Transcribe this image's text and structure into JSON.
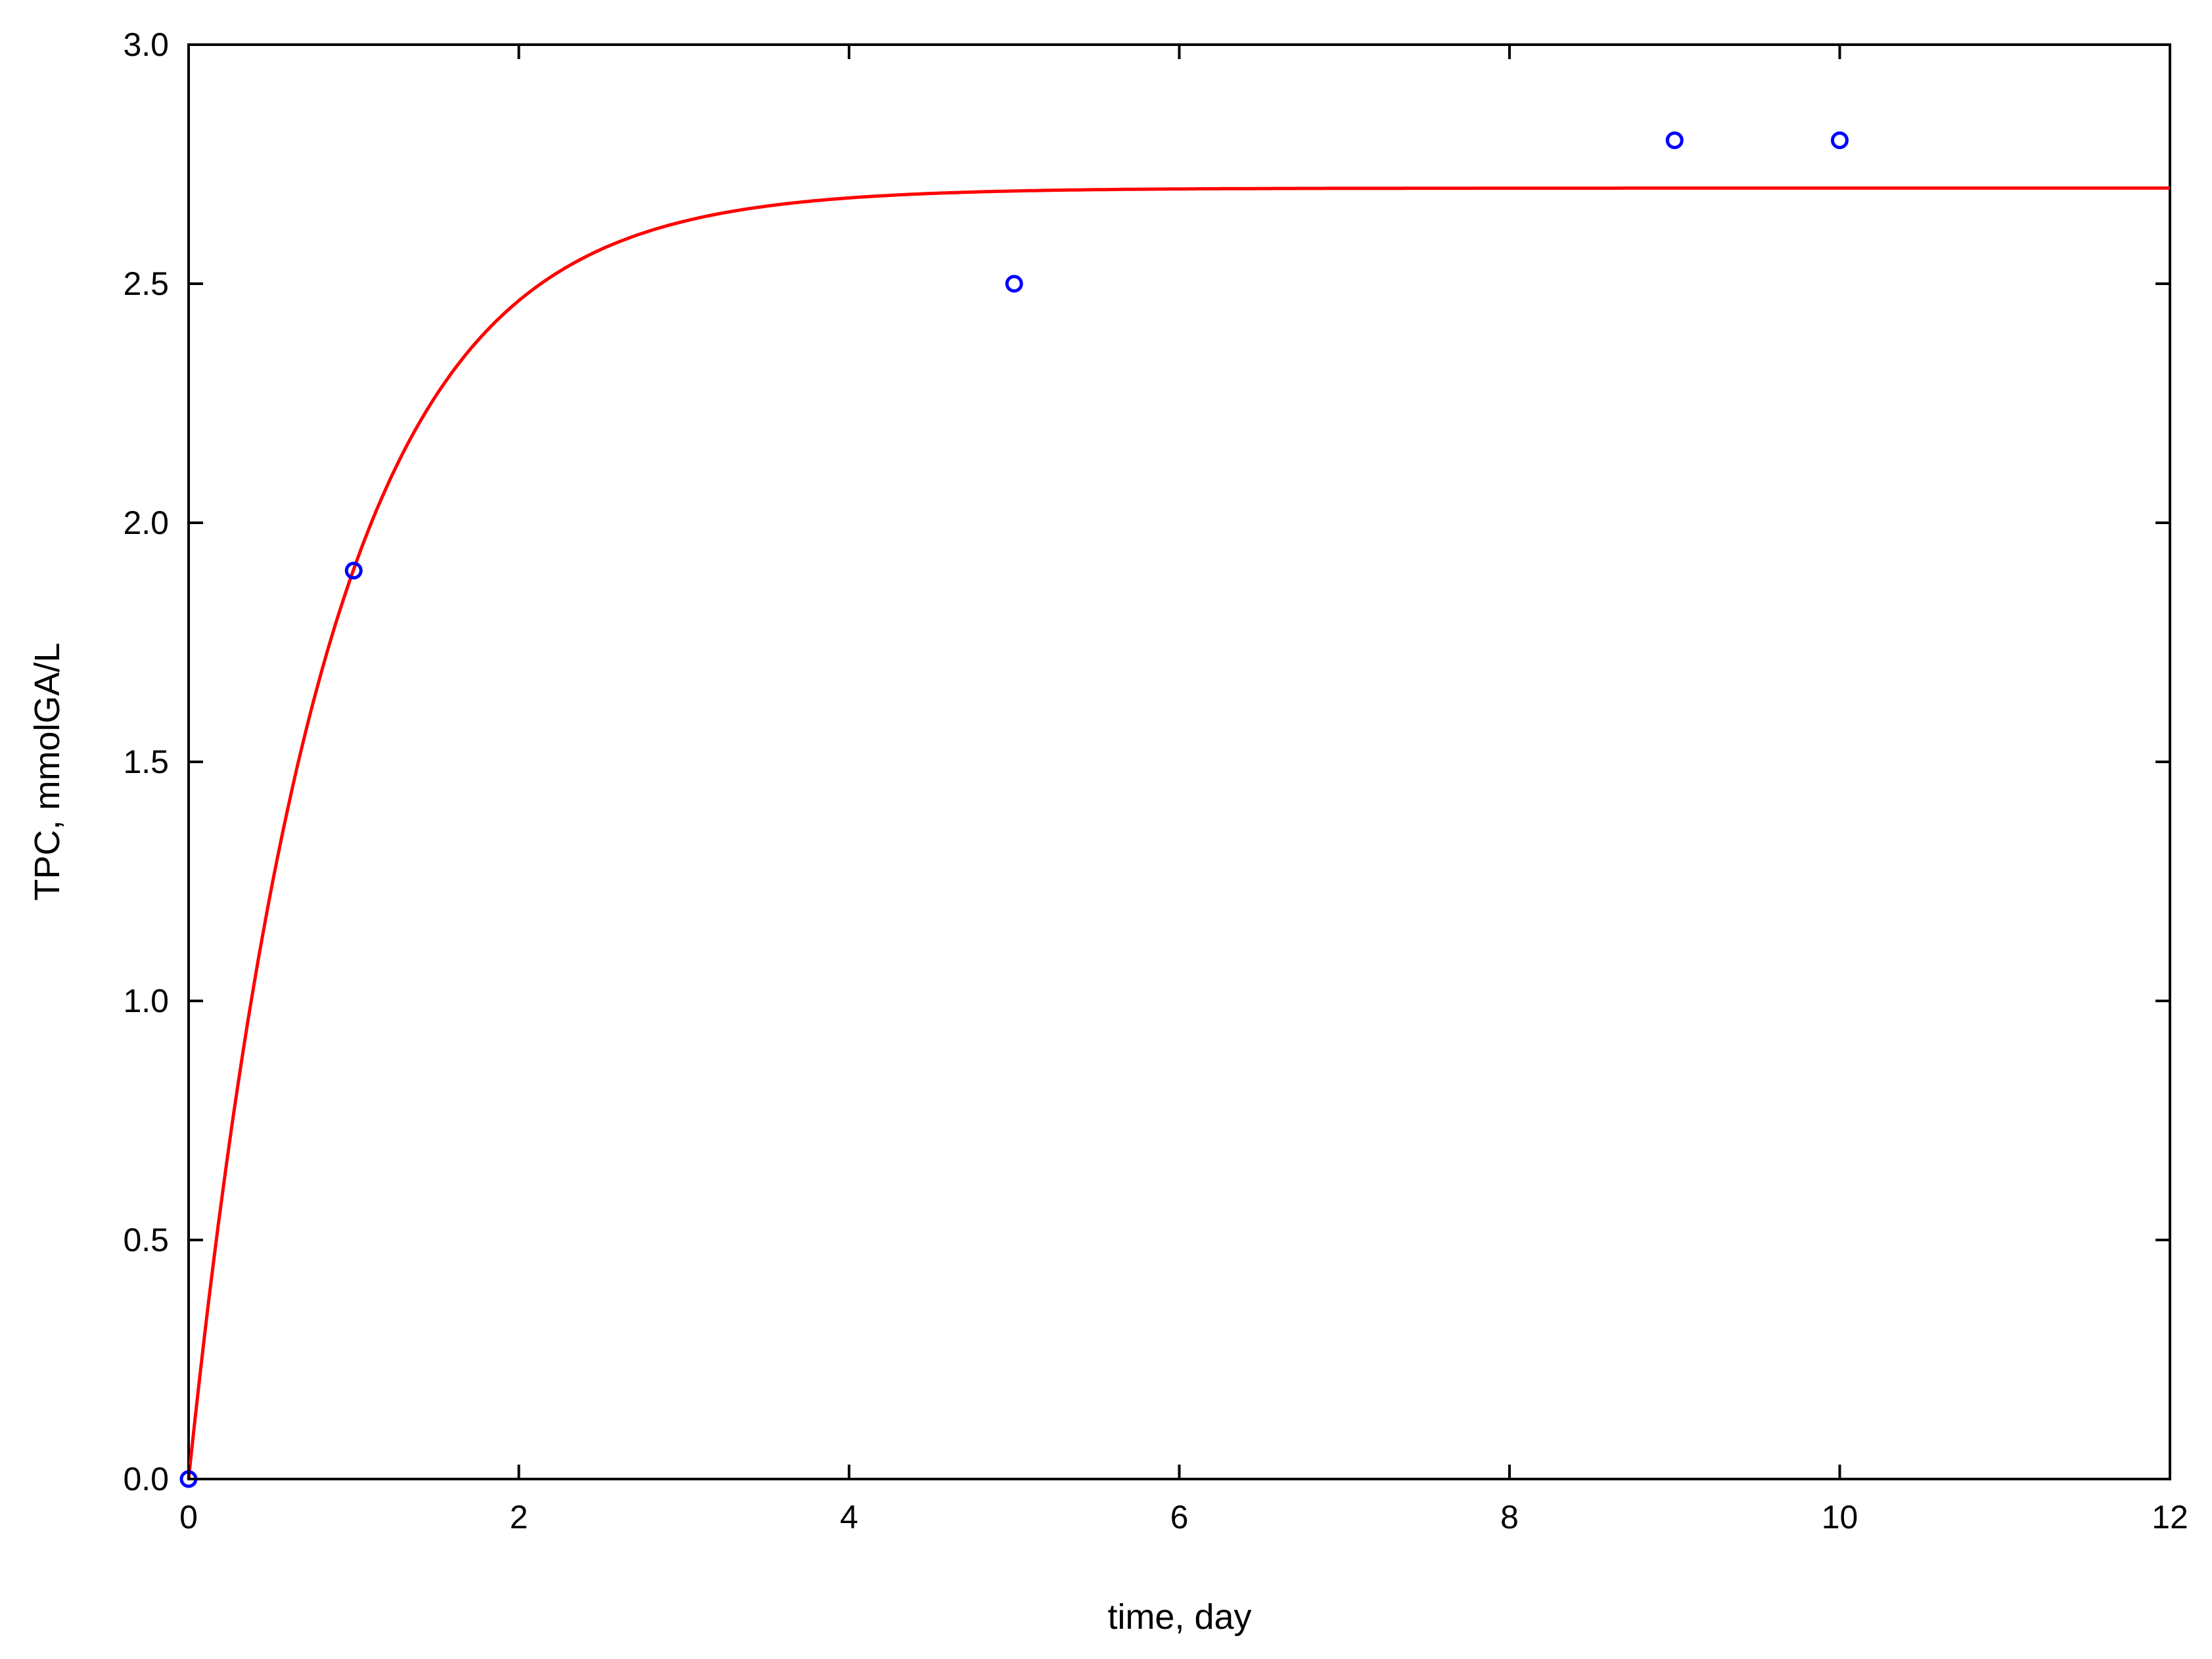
{
  "chart_data": {
    "type": "scatter",
    "title": "",
    "xlabel": "time, day",
    "ylabel": "TPC, mmolGA/L",
    "xlim": [
      0,
      12
    ],
    "ylim": [
      0,
      3.0
    ],
    "x_ticks": [
      "0",
      "2",
      "4",
      "6",
      "8",
      "10",
      "12"
    ],
    "y_ticks": [
      "0.0",
      "0.5",
      "1.0",
      "1.5",
      "2.0",
      "2.5",
      "3.0"
    ],
    "grid": false,
    "series": [
      {
        "type": "scatter",
        "marker": "open-circle",
        "color": "#0000ff",
        "x": [
          0,
          1,
          5,
          9,
          10
        ],
        "y": [
          0.0,
          1.9,
          2.5,
          2.8,
          2.8
        ]
      },
      {
        "type": "line",
        "color": "#ff0000",
        "model": "y = A*(1 - exp(-k*t))",
        "A": 2.7,
        "k": 1.22
      }
    ]
  }
}
